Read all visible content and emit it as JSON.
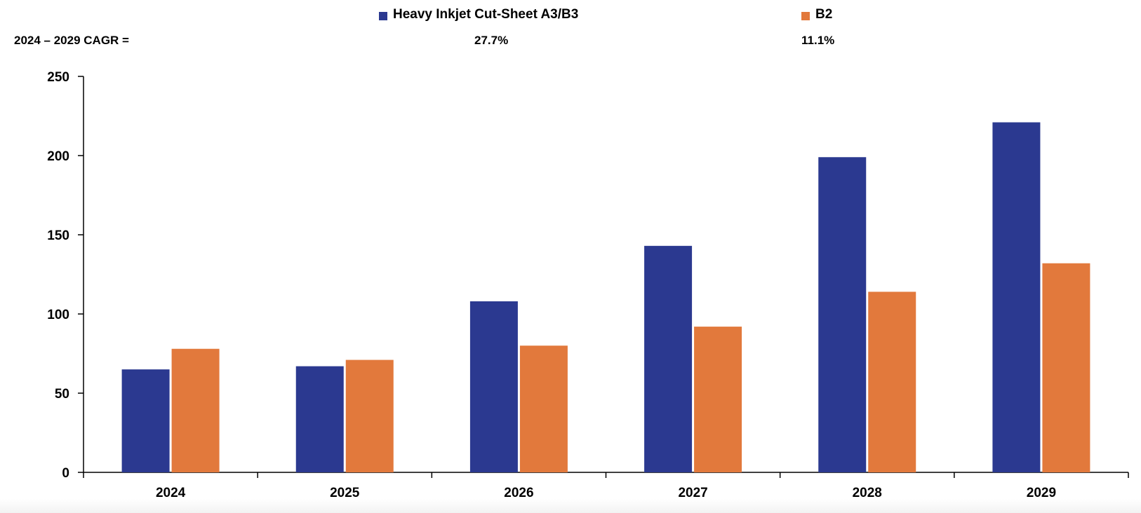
{
  "legend": [
    {
      "label": "Heavy Inkjet Cut-Sheet A3/B3",
      "color": "#2b3990"
    },
    {
      "label": "B2",
      "color": "#e2793c"
    }
  ],
  "cagr": {
    "label": "2024 – 2029 CAGR =",
    "values": [
      "27.7%",
      "11.1%"
    ]
  },
  "chart_data": {
    "type": "bar",
    "categories": [
      "2024",
      "2025",
      "2026",
      "2027",
      "2028",
      "2029"
    ],
    "series": [
      {
        "name": "Heavy Inkjet Cut-Sheet A3/B3",
        "color": "#2b3990",
        "values": [
          65,
          67,
          108,
          143,
          199,
          221
        ]
      },
      {
        "name": "B2",
        "color": "#e2793c",
        "values": [
          78,
          71,
          80,
          92,
          114,
          132
        ]
      }
    ],
    "ylim": [
      0,
      250
    ],
    "yticks": [
      0,
      50,
      100,
      150,
      200,
      250
    ],
    "grid": false,
    "legend_position": "top",
    "title": "",
    "xlabel": "",
    "ylabel": ""
  }
}
